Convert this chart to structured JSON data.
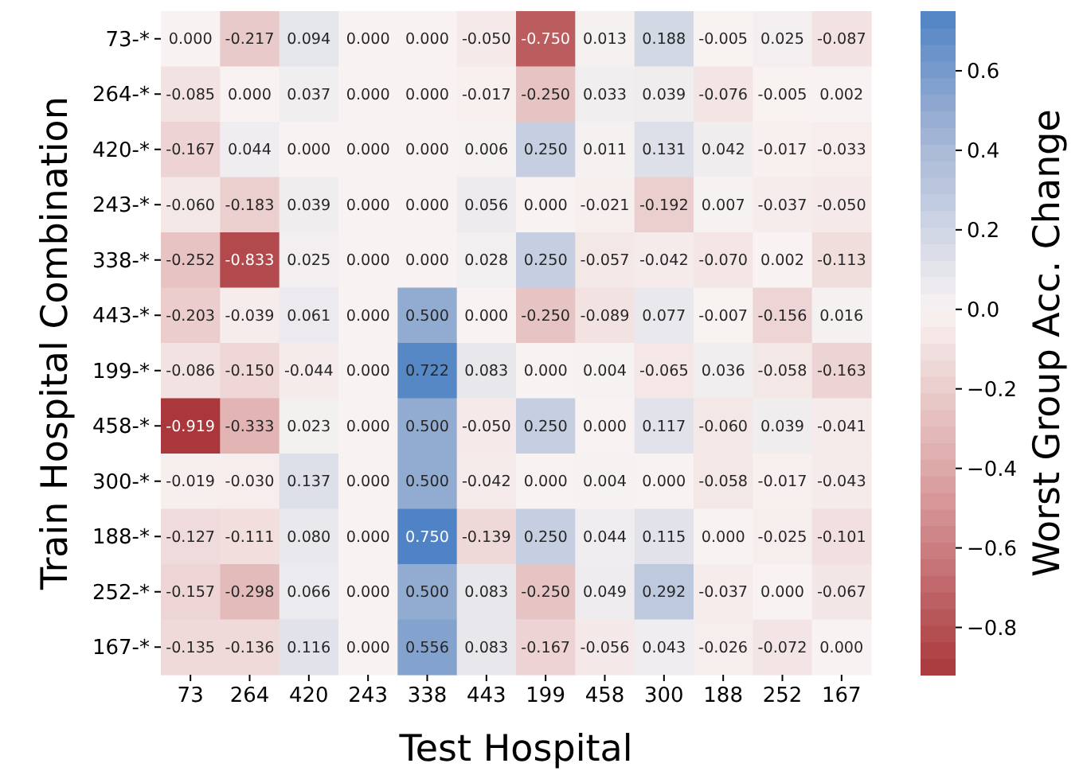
{
  "chart_data": {
    "type": "heatmap",
    "xlabel": "Test Hospital",
    "ylabel": "Train Hospital Combination",
    "clabel": "Worst Group Acc. Change",
    "categories": [
      "73",
      "264",
      "420",
      "243",
      "338",
      "443",
      "199",
      "458",
      "300",
      "188",
      "252",
      "167"
    ],
    "y_categories": [
      "73-*",
      "264-*",
      "420-*",
      "243-*",
      "338-*",
      "443-*",
      "199-*",
      "458-*",
      "300-*",
      "188-*",
      "252-*",
      "167-*"
    ],
    "cells": [
      [
        0.0,
        -0.217,
        0.094,
        0.0,
        0.0,
        -0.05,
        -0.75,
        0.013,
        0.188,
        -0.005,
        0.025,
        -0.087
      ],
      [
        -0.085,
        0.0,
        0.037,
        0.0,
        0.0,
        -0.017,
        -0.25,
        0.033,
        0.039,
        -0.076,
        -0.005,
        0.002
      ],
      [
        -0.167,
        0.044,
        0.0,
        0.0,
        0.0,
        0.006,
        0.25,
        0.011,
        0.131,
        0.042,
        -0.017,
        -0.033
      ],
      [
        -0.06,
        -0.183,
        0.039,
        0.0,
        0.0,
        0.056,
        0.0,
        -0.021,
        -0.192,
        0.007,
        -0.037,
        -0.05
      ],
      [
        -0.252,
        -0.833,
        0.025,
        0.0,
        0.0,
        0.028,
        0.25,
        -0.057,
        -0.042,
        -0.07,
        0.002,
        -0.113
      ],
      [
        -0.203,
        -0.039,
        0.061,
        0.0,
        0.5,
        0.0,
        -0.25,
        -0.089,
        0.077,
        -0.007,
        -0.156,
        0.016
      ],
      [
        -0.086,
        -0.15,
        -0.044,
        0.0,
        0.722,
        0.083,
        0.0,
        0.004,
        -0.065,
        0.036,
        -0.058,
        -0.163
      ],
      [
        -0.919,
        -0.333,
        0.023,
        0.0,
        0.5,
        -0.05,
        0.25,
        0.0,
        0.117,
        -0.06,
        0.039,
        -0.041
      ],
      [
        -0.019,
        -0.03,
        0.137,
        0.0,
        0.5,
        -0.042,
        0.0,
        0.004,
        0.0,
        -0.058,
        -0.017,
        -0.043
      ],
      [
        -0.127,
        -0.111,
        0.08,
        0.0,
        0.75,
        -0.139,
        0.25,
        0.044,
        0.115,
        0.0,
        -0.025,
        -0.101
      ],
      [
        -0.157,
        -0.298,
        0.066,
        0.0,
        0.5,
        0.083,
        -0.25,
        0.049,
        0.292,
        -0.037,
        0.0,
        -0.067
      ],
      [
        -0.135,
        -0.136,
        0.116,
        0.0,
        0.556,
        0.083,
        -0.167,
        -0.056,
        0.043,
        -0.026,
        -0.072,
        0.0
      ]
    ],
    "cell_labels": [
      [
        "0.000",
        "-0.217",
        "0.094",
        "0.000",
        "0.000",
        "-0.050",
        "-0.750",
        "0.013",
        "0.188",
        "-0.005",
        "0.025",
        "-0.087"
      ],
      [
        "-0.085",
        "0.000",
        "0.037",
        "0.000",
        "0.000",
        "-0.017",
        "-0.250",
        "0.033",
        "0.039",
        "-0.076",
        "-0.005",
        "0.002"
      ],
      [
        "-0.167",
        "0.044",
        "0.000",
        "0.000",
        "0.000",
        "0.006",
        "0.250",
        "0.011",
        "0.131",
        "0.042",
        "-0.017",
        "-0.033"
      ],
      [
        "-0.060",
        "-0.183",
        "0.039",
        "0.000",
        "0.000",
        "0.056",
        "0.000",
        "-0.021",
        "-0.192",
        "0.007",
        "-0.037",
        "-0.050"
      ],
      [
        "-0.252",
        "-0.833",
        "0.025",
        "0.000",
        "0.000",
        "0.028",
        "0.250",
        "-0.057",
        "-0.042",
        "-0.070",
        "0.002",
        "-0.113"
      ],
      [
        "-0.203",
        "-0.039",
        "0.061",
        "0.000",
        "0.500",
        "0.000",
        "-0.250",
        "-0.089",
        "0.077",
        "-0.007",
        "-0.156",
        "0.016"
      ],
      [
        "-0.086",
        "-0.150",
        "-0.044",
        "0.000",
        "0.722",
        "0.083",
        "0.000",
        "0.004",
        "-0.065",
        "0.036",
        "-0.058",
        "-0.163"
      ],
      [
        "-0.919",
        "-0.333",
        "0.023",
        "0.000",
        "0.500",
        "-0.050",
        "0.250",
        "0.000",
        "0.117",
        "-0.060",
        "0.039",
        "-0.041"
      ],
      [
        "-0.019",
        "-0.030",
        "0.137",
        "0.000",
        "0.500",
        "-0.042",
        "0.000",
        "0.004",
        "0.000",
        "-0.058",
        "-0.017",
        "-0.043"
      ],
      [
        "-0.127",
        "-0.111",
        "0.080",
        "0.000",
        "0.750",
        "-0.139",
        "0.250",
        "0.044",
        "0.115",
        "0.000",
        "-0.025",
        "-0.101"
      ],
      [
        "-0.157",
        "-0.298",
        "0.066",
        "0.000",
        "0.500",
        "0.083",
        "-0.250",
        "0.049",
        "0.292",
        "-0.037",
        "0.000",
        "-0.067"
      ],
      [
        "-0.135",
        "-0.136",
        "0.116",
        "0.000",
        "0.556",
        "0.083",
        "-0.167",
        "-0.056",
        "0.043",
        "-0.026",
        "-0.072",
        "0.000"
      ]
    ],
    "clim": [
      -0.919,
      0.75
    ],
    "cticks": [
      {
        "value": -0.8,
        "label": "−0.8"
      },
      {
        "value": -0.6,
        "label": "−0.6"
      },
      {
        "value": -0.4,
        "label": "−0.4"
      },
      {
        "value": -0.2,
        "label": "−0.2"
      },
      {
        "value": 0,
        "label": "0.0"
      },
      0.2,
      0.4,
      0.6
    ]
  }
}
